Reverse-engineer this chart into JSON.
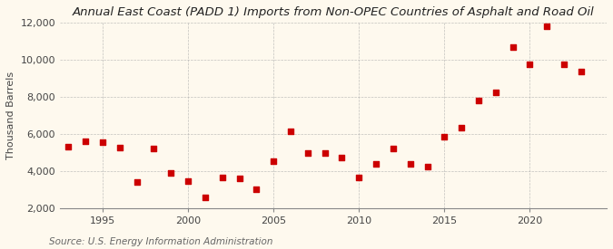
{
  "title": "Annual East Coast (PADD 1) Imports from Non-OPEC Countries of Asphalt and Road Oil",
  "ylabel": "Thousand Barrels",
  "source": "Source: U.S. Energy Information Administration",
  "background_color": "#FEF9EE",
  "plot_bg_color": "#FEF9EE",
  "point_color": "#CC0000",
  "years": [
    1993,
    1994,
    1995,
    1996,
    1997,
    1998,
    1999,
    2000,
    2001,
    2002,
    2003,
    2004,
    2005,
    2006,
    2007,
    2008,
    2009,
    2010,
    2011,
    2012,
    2013,
    2014,
    2015,
    2016,
    2017,
    2018,
    2019,
    2020,
    2021,
    2022,
    2023
  ],
  "values": [
    5300,
    5600,
    5550,
    5250,
    3400,
    5200,
    3900,
    3450,
    2580,
    3650,
    3600,
    3000,
    4550,
    6150,
    4950,
    4950,
    4750,
    3650,
    4400,
    5200,
    4400,
    4250,
    5850,
    6350,
    7800,
    8250,
    10700,
    9750,
    11800,
    9750,
    9350
  ],
  "ylim": [
    2000,
    12000
  ],
  "yticks": [
    2000,
    4000,
    6000,
    8000,
    10000,
    12000
  ],
  "xticks": [
    1995,
    2000,
    2005,
    2010,
    2015,
    2020
  ],
  "xlim": [
    1992.5,
    2024.5
  ],
  "grid_color": "#AAAAAA",
  "title_fontsize": 9.5,
  "label_fontsize": 8,
  "tick_fontsize": 8,
  "source_fontsize": 7.5
}
